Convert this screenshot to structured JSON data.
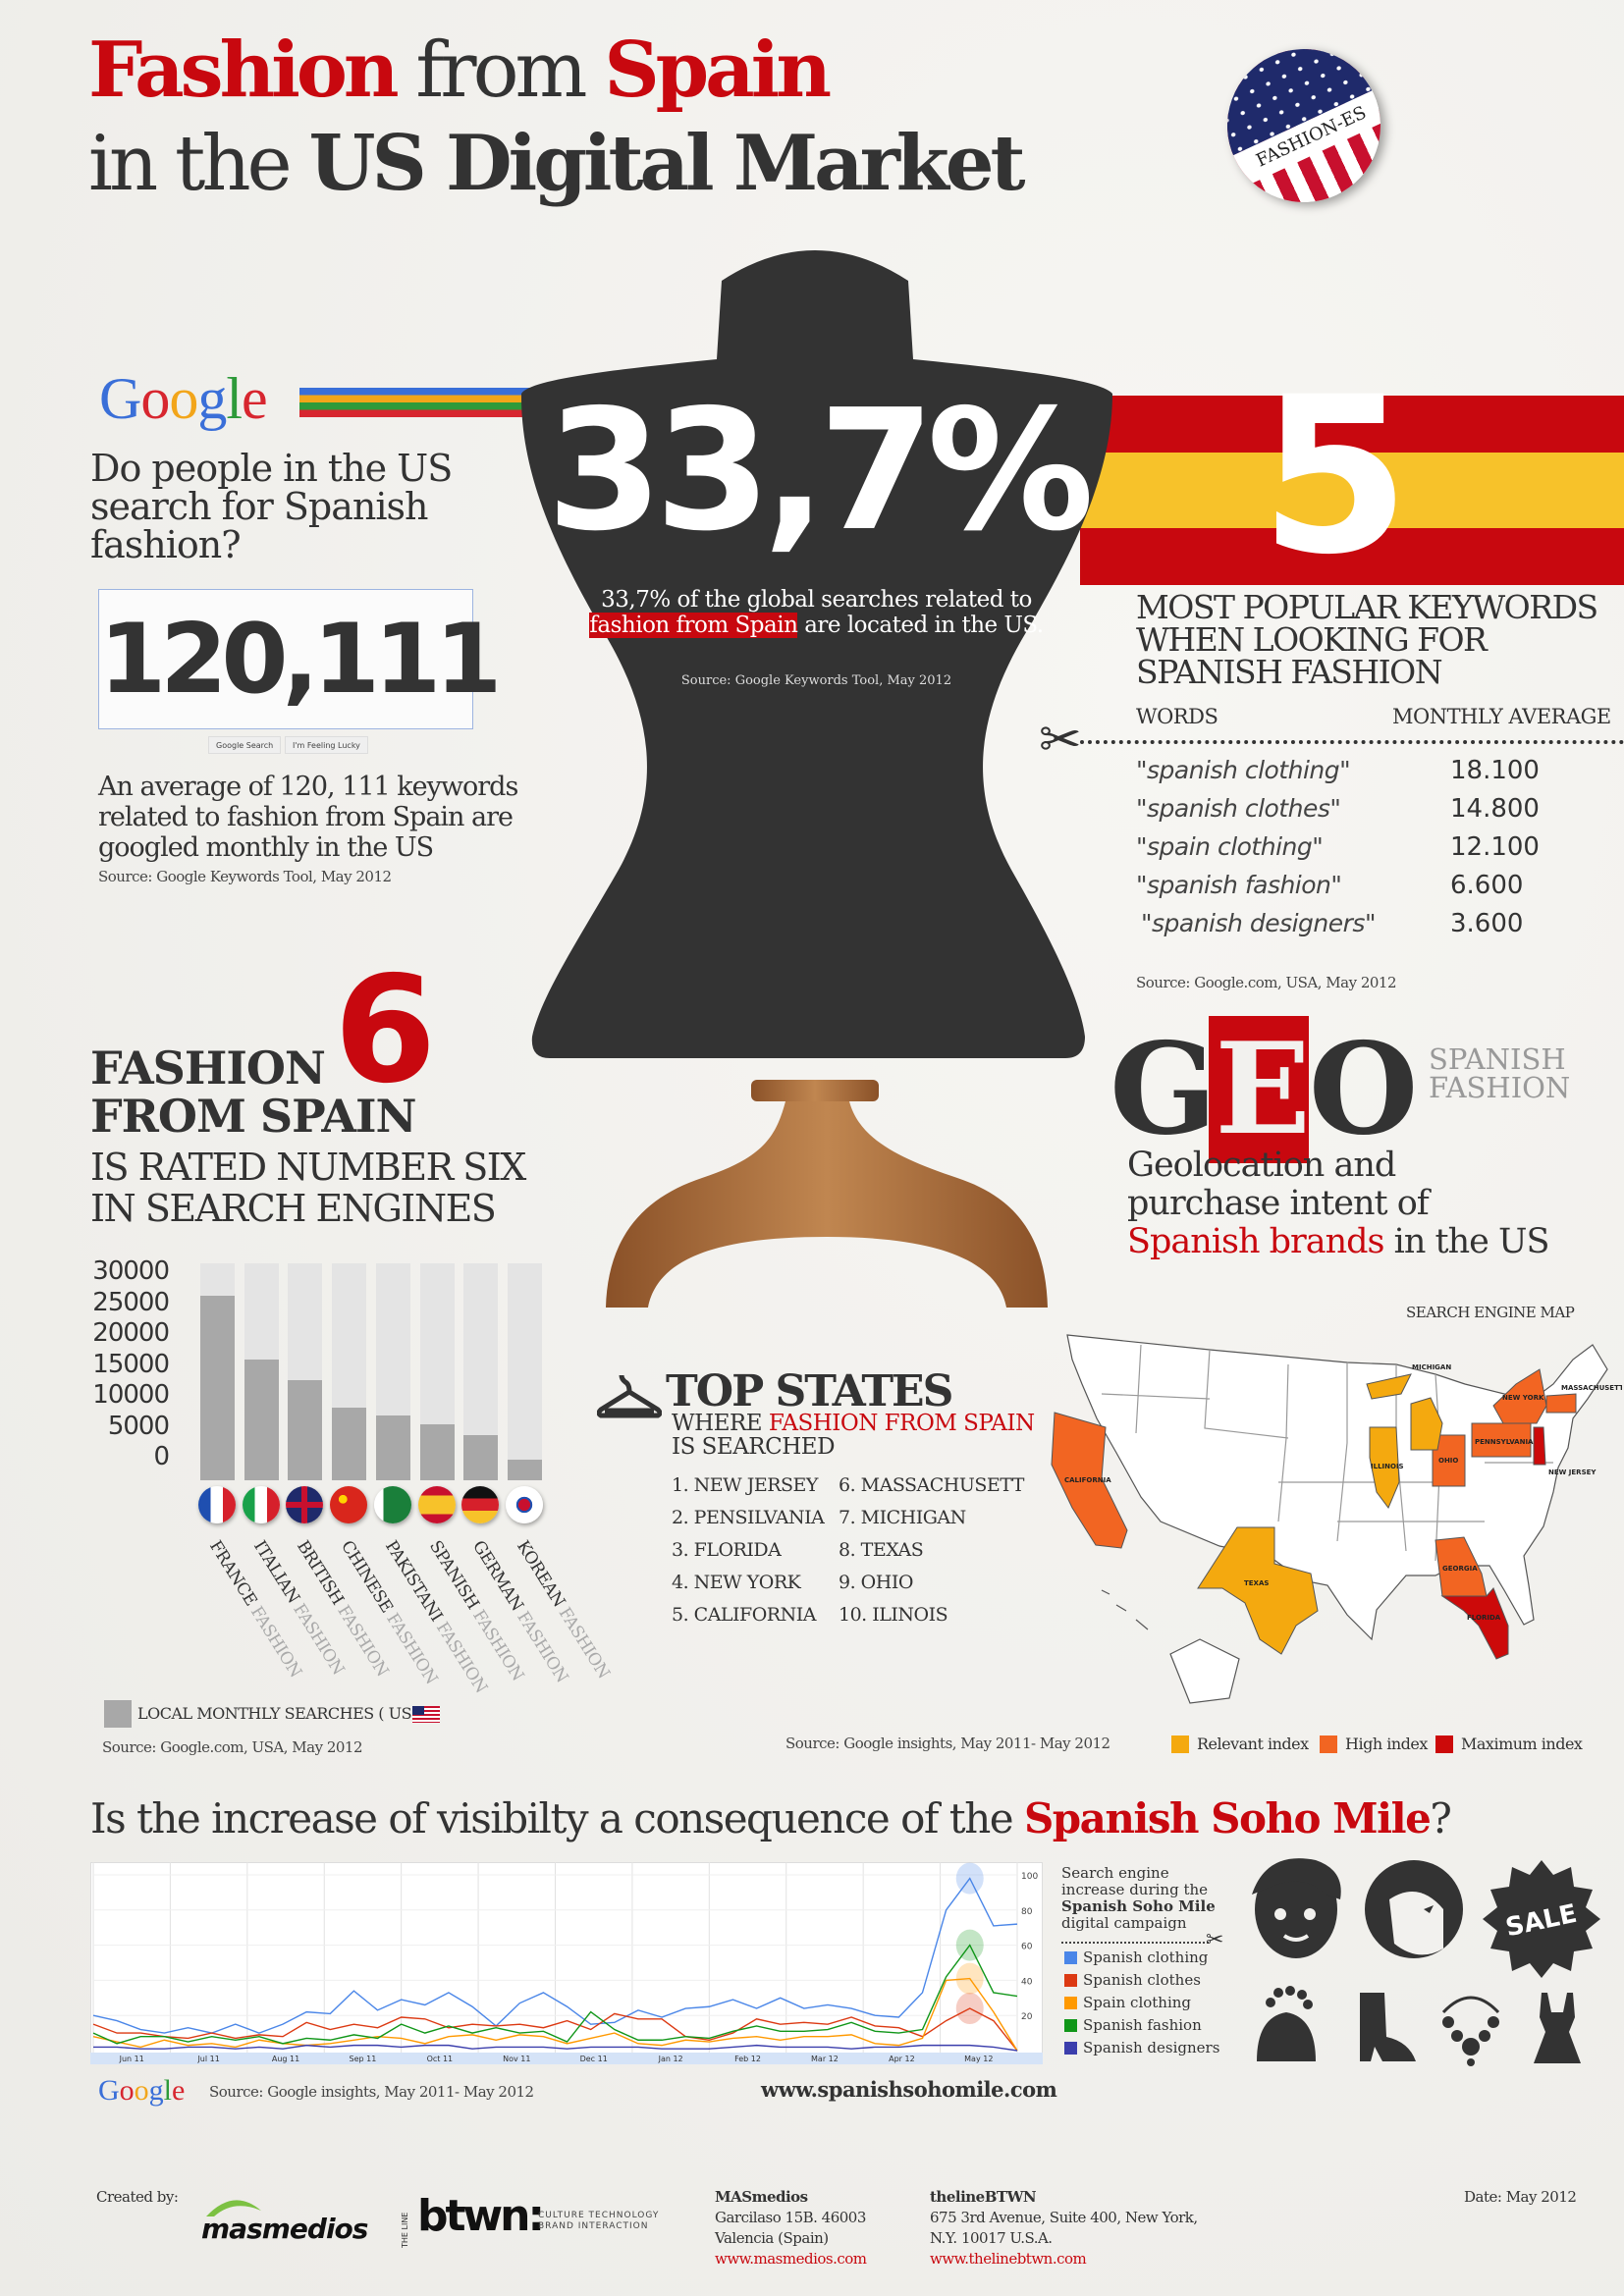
{
  "header": {
    "t1a": "Fashion",
    "t1b": " from ",
    "t1c": "Spain",
    "t2a": "in the ",
    "t2b": "US Digital Market",
    "badge": "FASHION-ES"
  },
  "google_section": {
    "logo": "Google",
    "question": "Do people in the US search for Spanish fashion?",
    "big_number": "120,111",
    "buttons": [
      "Google Search",
      "I'm Feeling Lucky"
    ],
    "description": "An average of 120, 111 keywords related to fashion from Spain are googled monthly in the US",
    "source": "Source: Google Keywords Tool, May 2012"
  },
  "mannequin": {
    "big": "33,7%",
    "text_before": "33,7% of the global searches related to ",
    "highlight": "fashion from Spain",
    "text_after": " are located in the US.",
    "source": "Source: Google Keywords Tool,  May  2012"
  },
  "keywords": {
    "number": "5",
    "title": "MOST POPULAR KEYWORDS WHEN LOOKING FOR SPANISH FASHION",
    "col_words": "WORDS",
    "col_avg": "MONTHLY AVERAGE",
    "rows": [
      {
        "word": "\"spanish clothing\"",
        "value": "18.100"
      },
      {
        "word": "\"spanish clothes\"",
        "value": "14.800"
      },
      {
        "word": "\"spain clothing\"",
        "value": "12.100"
      },
      {
        "word": "\"spanish fashion\"",
        "value": "6.600"
      },
      {
        "word": "\"spanish designers\"",
        "value": "3.600"
      }
    ],
    "source": "Source: Google.com, USA, May  2012"
  },
  "rank": {
    "number": "6",
    "title1": "FASHION",
    "title2": "FROM SPAIN",
    "sub1": "IS RATED NUMBER SIX",
    "sub2": "IN SEARCH ENGINES"
  },
  "chart_data": [
    {
      "type": "bar",
      "categories": [
        "FRANCE FASHION",
        "ITALIAN FASHION",
        "BRITISH FASHION",
        "CHINESE FASHION",
        "PAKISTANI FASHION",
        "SPANISH FASHION",
        "GERMAN FASHION",
        "KOREAN FASHION"
      ],
      "flags": [
        "france",
        "italy",
        "uk",
        "china",
        "pakistan",
        "spain",
        "germany",
        "korea"
      ],
      "values": [
        25500,
        16700,
        13900,
        10100,
        8900,
        7700,
        6300,
        2900
      ],
      "ylim": [
        0,
        30000
      ],
      "yticks": [
        "30000",
        "25000",
        "20000",
        "15000",
        "10000",
        "5000",
        "0"
      ],
      "legend": "LOCAL MONTHLY SEARCHES ( US )",
      "bar_color": "#a8a8a8",
      "track_color": "#e4e4e4",
      "source": "Source: Google.com, USA, May 2012"
    },
    {
      "type": "line",
      "x_labels": [
        "Jun 11",
        "Jul 11",
        "Aug 11",
        "Sep 11",
        "Oct 11",
        "Nov 11",
        "Dec 11",
        "Jan 12",
        "Feb 12",
        "Mar 12",
        "Apr 12",
        "May 12"
      ],
      "ylim": [
        0,
        100
      ],
      "yticks": [
        "100",
        "80",
        "60",
        "40",
        "20"
      ],
      "grid": true,
      "series": [
        {
          "name": "Spanish clothing",
          "color": "#4a86e8",
          "values": [
            20,
            17,
            12,
            10,
            13,
            10,
            15,
            10,
            15,
            22,
            21,
            34,
            23,
            29,
            26,
            33,
            25,
            14,
            27,
            33,
            25,
            15,
            16,
            23,
            19,
            24,
            25,
            29,
            24,
            30,
            24,
            26,
            24,
            20,
            19,
            33,
            80,
            98,
            71,
            72
          ]
        },
        {
          "name": "Spanish clothes",
          "color": "#dc3912",
          "values": [
            15,
            10,
            10,
            8,
            7,
            10,
            7,
            9,
            8,
            16,
            12,
            15,
            13,
            19,
            18,
            13,
            15,
            14,
            15,
            13,
            17,
            12,
            21,
            18,
            18,
            8,
            6,
            10,
            18,
            15,
            16,
            15,
            19,
            14,
            13,
            8,
            17,
            24,
            17,
            0
          ]
        },
        {
          "name": "Spain clothing",
          "color": "#ff9900",
          "values": [
            8,
            5,
            2,
            6,
            3,
            4,
            2,
            6,
            4,
            3,
            4,
            6,
            8,
            7,
            4,
            8,
            9,
            6,
            9,
            8,
            4,
            7,
            10,
            4,
            3,
            6,
            5,
            7,
            8,
            6,
            8,
            8,
            9,
            4,
            3,
            7,
            40,
            41,
            22,
            0
          ]
        },
        {
          "name": "Spanish fashion",
          "color": "#109618",
          "values": [
            10,
            4,
            8,
            8,
            5,
            8,
            6,
            8,
            4,
            7,
            6,
            9,
            7,
            15,
            10,
            14,
            10,
            13,
            10,
            11,
            5,
            22,
            12,
            6,
            6,
            8,
            7,
            11,
            14,
            11,
            11,
            12,
            16,
            11,
            10,
            12,
            42,
            60,
            33,
            31
          ]
        },
        {
          "name": "Spanish designers",
          "color": "#3b3eac",
          "values": [
            2,
            2,
            1,
            1,
            2,
            2,
            1,
            2,
            1,
            3,
            2,
            3,
            3,
            2,
            3,
            3,
            1,
            2,
            2,
            2,
            1,
            2,
            2,
            2,
            1,
            1,
            1,
            2,
            3,
            2,
            2,
            2,
            1,
            2,
            2,
            3,
            3,
            3,
            2,
            0
          ]
        }
      ],
      "source": "Source: Google insights, May 2011- May 2012"
    }
  ],
  "top_states": {
    "title": "TOP STATES",
    "sub_prefix": "WHERE ",
    "sub_highlight": "FASHION FROM SPAIN",
    "sub2": "IS SEARCHED",
    "items": [
      "1. NEW JERSEY",
      "2. PENSILVANIA",
      "3. FLORIDA",
      "4. NEW YORK",
      "5. CALIFORNIA",
      "6. MASSACHUSETT",
      "7. MICHIGAN",
      "8. TEXAS",
      "9. OHIO",
      "10. ILINOIS"
    ]
  },
  "geo": {
    "g": "G",
    "e": "E",
    "o": "O",
    "side": "SPANISH FASHION",
    "line1": "Geolocation and",
    "line2": "purchase intent of",
    "highlight": "Spanish brands",
    "line3_rest": " in the US",
    "map_title": "SEARCH ENGINE MAP",
    "source": "Source: Google insights, May 2011- May 2012",
    "legend": [
      {
        "label": "Relevant index",
        "color": "#f4a90f"
      },
      {
        "label": "High index",
        "color": "#f26522"
      },
      {
        "label": "Maximum index",
        "color": "#cc0a0a"
      }
    ],
    "states": {
      "relevant": [
        "Michigan",
        "Illinois",
        "Texas"
      ],
      "high": [
        "California",
        "New York",
        "Pennsylvania",
        "Ohio",
        "Georgia",
        "Massachusetts"
      ],
      "maximum": [
        "Florida",
        "New Jersey"
      ]
    }
  },
  "soho": {
    "question_a": "Is the increase of visibilty a consequence of the ",
    "question_b": "Spanish Soho Mile",
    "question_c": "?",
    "desc_a": "Search engine increase during the ",
    "desc_b": "Spanish Soho Mile",
    "desc_c": " digital campaign",
    "google": "Google",
    "website": "www.spanishsohomile.com",
    "sale": "SALE",
    "icons": [
      "man-face-icon",
      "woman-face-icon",
      "sale-badge-icon",
      "handbag-icon",
      "boot-icon",
      "necklace-icon",
      "dress-icon"
    ]
  },
  "footer": {
    "created_by": "Created by:",
    "masmedios_logo": "masmedios",
    "btwn_logo": "btwn:",
    "btwn_small": "THE LINE",
    "btwn_tag": "CULTURE TECHNOLOGY BRAND INTERACTION",
    "c1": {
      "name": "MASmedios",
      "l1": "Garcilaso 15B. 46003",
      "l2": "Valencia (Spain)",
      "url": "www.masmedios.com"
    },
    "c2": {
      "name": "thelineBTWN",
      "l1": "675 3rd Avenue, Suite 400, New York,",
      "l2": "N.Y. 10017 U.S.A.",
      "url": "www.thelinebtwn.com"
    },
    "date": "Date: May 2012"
  },
  "colors": {
    "red": "#c8080f",
    "dark": "#333333",
    "yellow": "#f7c22a",
    "wood": "#a86a38"
  }
}
